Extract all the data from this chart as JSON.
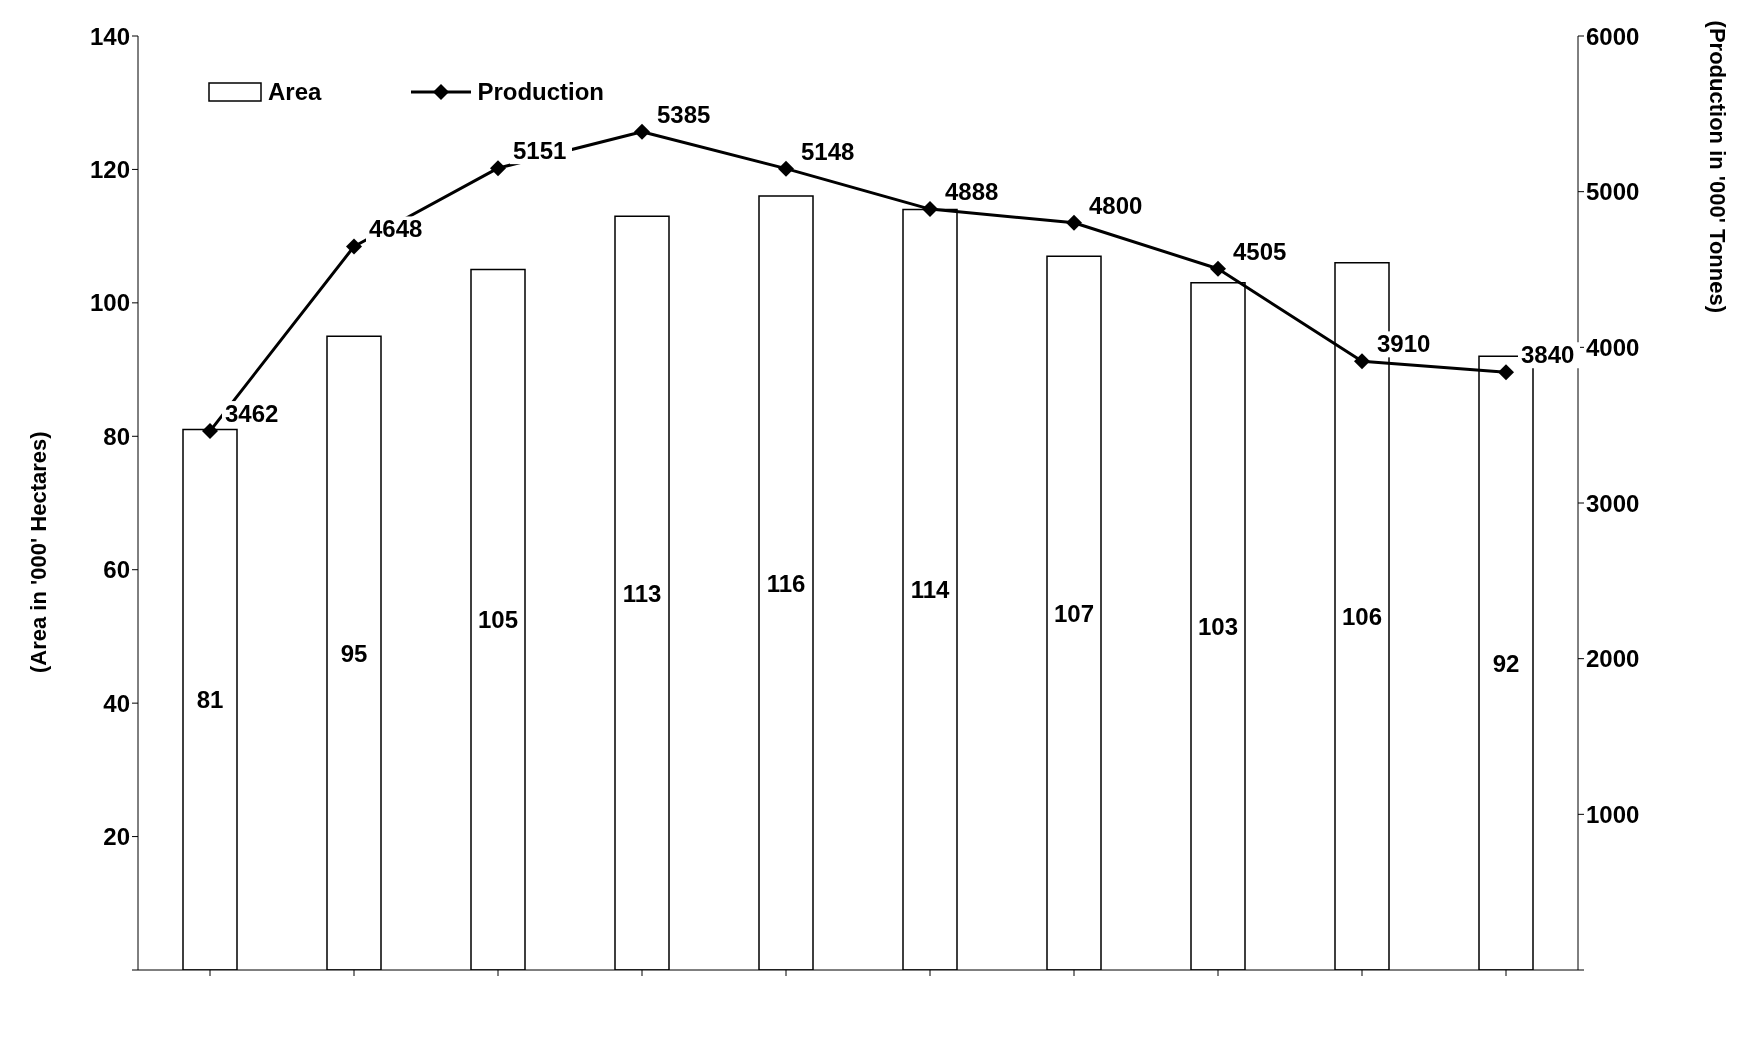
{
  "chart_data": {
    "type": "bar",
    "ylabel": "(Area in '000' Hectares)",
    "y2label": "(Production in '000' Tonnes)",
    "categories": [
      null,
      null,
      null,
      null,
      null,
      null,
      null,
      null,
      null,
      null
    ],
    "series": [
      {
        "name": "Area",
        "color": "#ffffff",
        "values": [
          81,
          95,
          105,
          113,
          116,
          114,
          107,
          103,
          106,
          92
        ]
      },
      {
        "name": "Production",
        "type": "line",
        "axis": "y2",
        "color": "#000000",
        "values": [
          3462,
          4648,
          5151,
          5385,
          5148,
          4888,
          4800,
          4505,
          3910,
          3840
        ]
      }
    ],
    "ylim": [
      0,
      140
    ],
    "yticks": [
      {
        "value": 0,
        "label": null
      },
      20,
      40,
      60,
      80,
      100,
      120,
      140
    ],
    "y2lim": [
      0,
      6000
    ],
    "y2ticks": [
      {
        "value": 0,
        "label": null
      },
      1000,
      2000,
      3000,
      4000,
      5000,
      6000
    ],
    "data_labels": true,
    "grid": false,
    "legend": "top left",
    "marker": "diamond",
    "line_style": "solid"
  }
}
